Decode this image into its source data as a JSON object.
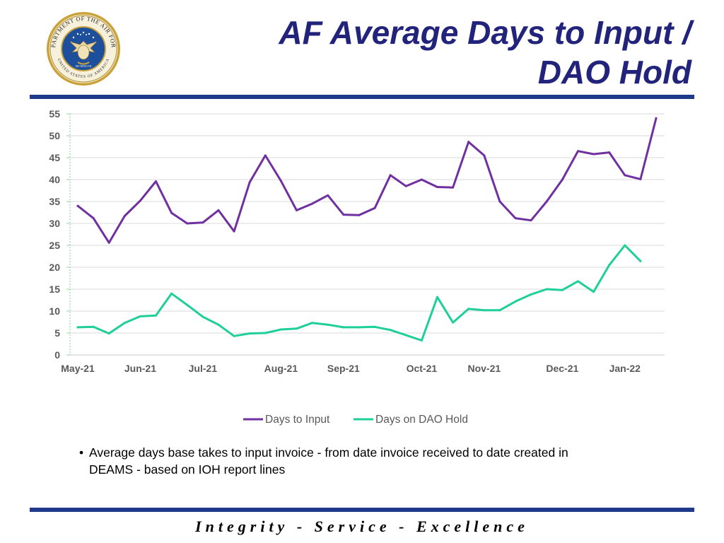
{
  "header": {
    "title_line1": "AF Average Days to Input /",
    "title_line2": "DAO Hold",
    "seal": {
      "icon": "department-of-the-air-force-seal-icon",
      "ring_text_top": "DEPARTMENT OF THE AIR FORCE",
      "ring_text_bottom": "UNITED STATES OF AMERICA",
      "year": "MCMXLVII"
    }
  },
  "colors": {
    "title": "#22237a",
    "rule": "#1f3a8a",
    "days_to_input": "#7030a0",
    "days_on_dao_hold": "#1fcf9a",
    "grid": "#d9d9d9",
    "axis_text": "#595959"
  },
  "chart_data": {
    "type": "line",
    "title": "",
    "xlabel": "",
    "ylabel": "",
    "ylim": [
      0,
      55
    ],
    "yticks": [
      0,
      5,
      10,
      15,
      20,
      25,
      30,
      35,
      40,
      45,
      50,
      55
    ],
    "grid": true,
    "legend_position": "bottom",
    "x_tick_labels": [
      "May-21",
      "Jun-21",
      "Jul-21",
      "Aug-21",
      "Sep-21",
      "Oct-21",
      "Nov-21",
      "Dec-21",
      "Jan-22"
    ],
    "x_tick_index": [
      0,
      4,
      8,
      13,
      17,
      22,
      26,
      31,
      35
    ],
    "series": [
      {
        "name": "Days to Input",
        "values": [
          34,
          31.2,
          25.6,
          31.7,
          35.2,
          39.6,
          32.4,
          30,
          30.2,
          33,
          28.2,
          39.4,
          45.5,
          39.7,
          33,
          34.5,
          36.4,
          32,
          31.9,
          33.5,
          41,
          38.5,
          40,
          38.3,
          38.2,
          48.6,
          45.5,
          35,
          31.2,
          30.7,
          35,
          40,
          46.5,
          45.8,
          46.2,
          41,
          40.1,
          54
        ]
      },
      {
        "name": "Days on DAO Hold",
        "values": [
          6.3,
          6.4,
          4.9,
          7.3,
          8.8,
          9,
          14,
          11.4,
          8.7,
          6.9,
          4.3,
          4.9,
          5,
          5.8,
          6,
          7.3,
          6.9,
          6.3,
          6.3,
          6.4,
          5.7,
          4.5,
          3.3,
          13.2,
          7.4,
          10.5,
          10.2,
          10.2,
          12.2,
          13.8,
          15,
          14.8,
          16.8,
          14.4,
          20.5,
          25,
          21.4
        ]
      }
    ]
  },
  "bullet": {
    "marker": "•",
    "line1": "Average days base takes to input invoice - from date invoice received to date created in",
    "line2": "DEAMS - based on IOH report lines"
  },
  "footer": {
    "motto": "Integrity - Service - Excellence"
  }
}
